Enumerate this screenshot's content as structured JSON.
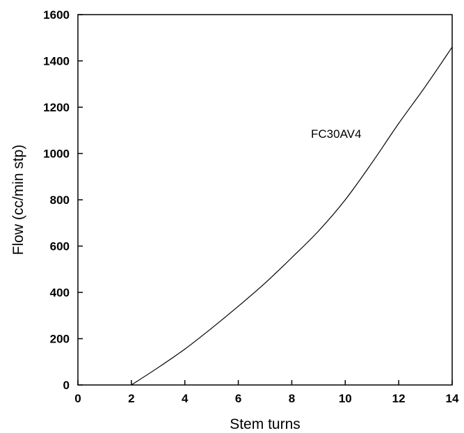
{
  "chart_data": {
    "type": "line",
    "title": "",
    "xlabel": "Stem turns",
    "ylabel": "Flow (cc/min stp)",
    "xlim": [
      0,
      14
    ],
    "ylim": [
      0,
      1600
    ],
    "xticks": [
      0,
      2,
      4,
      6,
      8,
      10,
      12,
      14
    ],
    "yticks": [
      0,
      200,
      400,
      600,
      800,
      1000,
      1200,
      1400,
      1600
    ],
    "grid": false,
    "legend": "none",
    "line_color": "#000000",
    "annotation": "FC30AV4",
    "series": [
      {
        "x": [
          2,
          3,
          4,
          5,
          6,
          7,
          8,
          9,
          10,
          11,
          12,
          13,
          14
        ],
        "y": [
          0,
          75,
          155,
          245,
          340,
          440,
          550,
          665,
          800,
          960,
          1130,
          1290,
          1460
        ]
      }
    ]
  }
}
